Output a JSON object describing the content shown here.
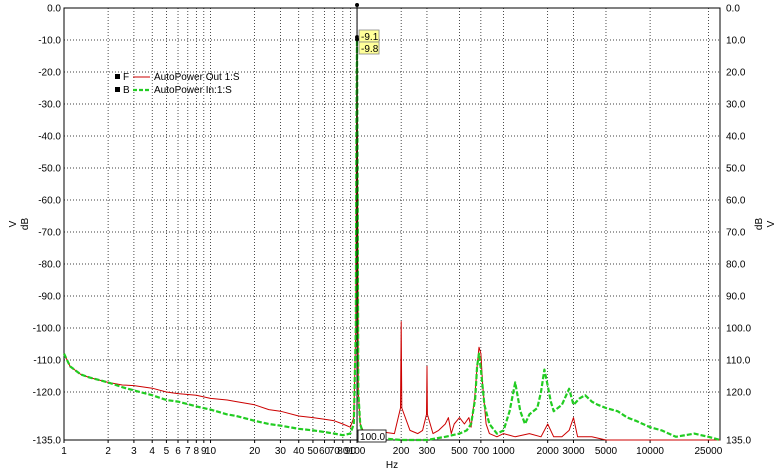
{
  "chart_data": {
    "type": "line",
    "x_scale": "log",
    "xlim": [
      1,
      30000
    ],
    "ylim": [
      -135,
      0
    ],
    "grid": true,
    "x_ticks": [
      1,
      2,
      3,
      4,
      5,
      6,
      7,
      8,
      9,
      10,
      20,
      30,
      40,
      50,
      60,
      70,
      80,
      90,
      100,
      200,
      300,
      500,
      700,
      1000,
      2000,
      3000,
      5000,
      10000,
      25000
    ],
    "x_tick_labels": [
      "1",
      "2",
      "3",
      "4",
      "5",
      "6",
      "7",
      "8",
      "9",
      "10",
      "20",
      "30",
      "40",
      "50",
      "60",
      "70",
      "80",
      "90",
      "100",
      "200",
      "300",
      "500",
      "700",
      "1000",
      "2000",
      "3000",
      "5000",
      "10000",
      "25000"
    ],
    "y_ticks": [
      0,
      -10,
      -20,
      -30,
      -40,
      -50,
      -60,
      -70,
      -80,
      -90,
      -100,
      -110,
      -120,
      -135
    ],
    "y_tick_labels": [
      "0.0",
      "-10.0",
      "-20.0",
      "-30.0",
      "-40.0",
      "-50.0",
      "-60.0",
      "-70.0",
      "-80.0",
      "-90.0",
      "-100.0",
      "-110.0",
      "-120.0",
      "-135.0"
    ],
    "y_tick_labels_right": [
      "0.0",
      "10.0",
      "20.0",
      "30.0",
      "40.0",
      "50.0",
      "60.0",
      "70.0",
      "80.0",
      "90.0",
      "100.0",
      "110.0",
      "120.0",
      "135.0"
    ],
    "xlabel": "Hz",
    "ylabel_left_unit": "V",
    "ylabel_left_scale": "dB",
    "ylabel_right_scale": "dB",
    "ylabel_right_unit": "V",
    "legend": {
      "placement": "top-left",
      "entries": [
        {
          "marker": "F",
          "name": "AutoPower Out 1:S",
          "color": "#cc0000",
          "style": "solid"
        },
        {
          "marker": "B",
          "name": "AutoPower In:1:S",
          "color": "#22cc22",
          "style": "dashed"
        }
      ]
    },
    "cursor": {
      "x": 100,
      "x_label": "100.0",
      "readouts": [
        {
          "label": "-9.1",
          "y": -9.1
        },
        {
          "label": "-9.8",
          "y": -9.8
        }
      ]
    },
    "series": [
      {
        "name": "AutoPower Out 1:S",
        "color": "#cc0000",
        "x": [
          1,
          1.1,
          1.3,
          1.5,
          2,
          2.5,
          3,
          4,
          5,
          6,
          8,
          10,
          13,
          15,
          20,
          25,
          30,
          40,
          50,
          60,
          70,
          80,
          90,
          95,
          98,
          99,
          100,
          101,
          102,
          105,
          110,
          130,
          150,
          180,
          198,
          200,
          202,
          230,
          260,
          280,
          298,
          300,
          302,
          330,
          360,
          400,
          420,
          440,
          460,
          500,
          540,
          580,
          600,
          640,
          660,
          680,
          700,
          720,
          760,
          800,
          900,
          1000,
          1200,
          1500,
          1800,
          2000,
          2200,
          2500,
          2800,
          3000,
          3200,
          3500,
          4000,
          5000,
          6000,
          8000,
          10000,
          15000,
          20000,
          25000,
          30000
        ],
        "y": [
          -108,
          -112,
          -114.5,
          -115.5,
          -117,
          -117.8,
          -118,
          -118.8,
          -120,
          -120.5,
          -121,
          -122,
          -122.5,
          -123,
          -124,
          -125.5,
          -126,
          -127.5,
          -128,
          -128.5,
          -129,
          -130,
          -131,
          -128,
          -100,
          -40,
          -9.1,
          -60,
          -120,
          -130,
          -132,
          -132,
          -132.5,
          -133,
          -125,
          -98,
          -125,
          -132,
          -133,
          -132,
          -127,
          -112,
          -127,
          -133,
          -132,
          -130,
          -128,
          -133,
          -130,
          -128,
          -130,
          -128,
          -131,
          -120,
          -112,
          -106,
          -108,
          -118,
          -130,
          -133,
          -134,
          -133,
          -134,
          -133,
          -134,
          -130,
          -134,
          -134,
          -132,
          -128,
          -134,
          -134,
          -134,
          -135,
          -135,
          -135,
          -135,
          -135,
          -135,
          -135,
          -135
        ]
      },
      {
        "name": "AutoPower In:1:S",
        "color": "#22cc22",
        "x": [
          1,
          1.1,
          1.3,
          1.5,
          2,
          2.5,
          3,
          4,
          5,
          6,
          8,
          10,
          13,
          15,
          20,
          25,
          30,
          40,
          50,
          60,
          70,
          80,
          90,
          95,
          98,
          99,
          100,
          101,
          102,
          105,
          110,
          130,
          150,
          200,
          300,
          400,
          500,
          560,
          600,
          640,
          660,
          680,
          700,
          740,
          800,
          900,
          1000,
          1100,
          1200,
          1300,
          1400,
          1500,
          1700,
          1800,
          1900,
          2000,
          2100,
          2200,
          2500,
          2800,
          3000,
          3300,
          3600,
          3800,
          4000,
          4400,
          5000,
          6000,
          7000,
          8000,
          10000,
          12000,
          15000,
          20000,
          25000,
          30000
        ],
        "y": [
          -108,
          -112,
          -114.5,
          -115.5,
          -117,
          -118.5,
          -119.5,
          -121,
          -122.5,
          -123,
          -124.5,
          -125.5,
          -127,
          -127.5,
          -129,
          -130,
          -130.5,
          -131.5,
          -132,
          -132.5,
          -133,
          -133.5,
          -133,
          -130,
          -100,
          -40,
          -9.8,
          -60,
          -120,
          -130,
          -133,
          -134,
          -134.5,
          -135,
          -135,
          -134,
          -133,
          -132,
          -130,
          -122,
          -112,
          -108,
          -113,
          -124,
          -130,
          -133,
          -132,
          -126,
          -117,
          -126,
          -130,
          -127,
          -125,
          -120,
          -113,
          -118,
          -123,
          -126,
          -124,
          -119,
          -124,
          -122,
          -121,
          -122,
          -123,
          -124,
          -125,
          -126,
          -128,
          -129,
          -131,
          -132,
          -134,
          -133,
          -134,
          -135
        ]
      }
    ]
  }
}
